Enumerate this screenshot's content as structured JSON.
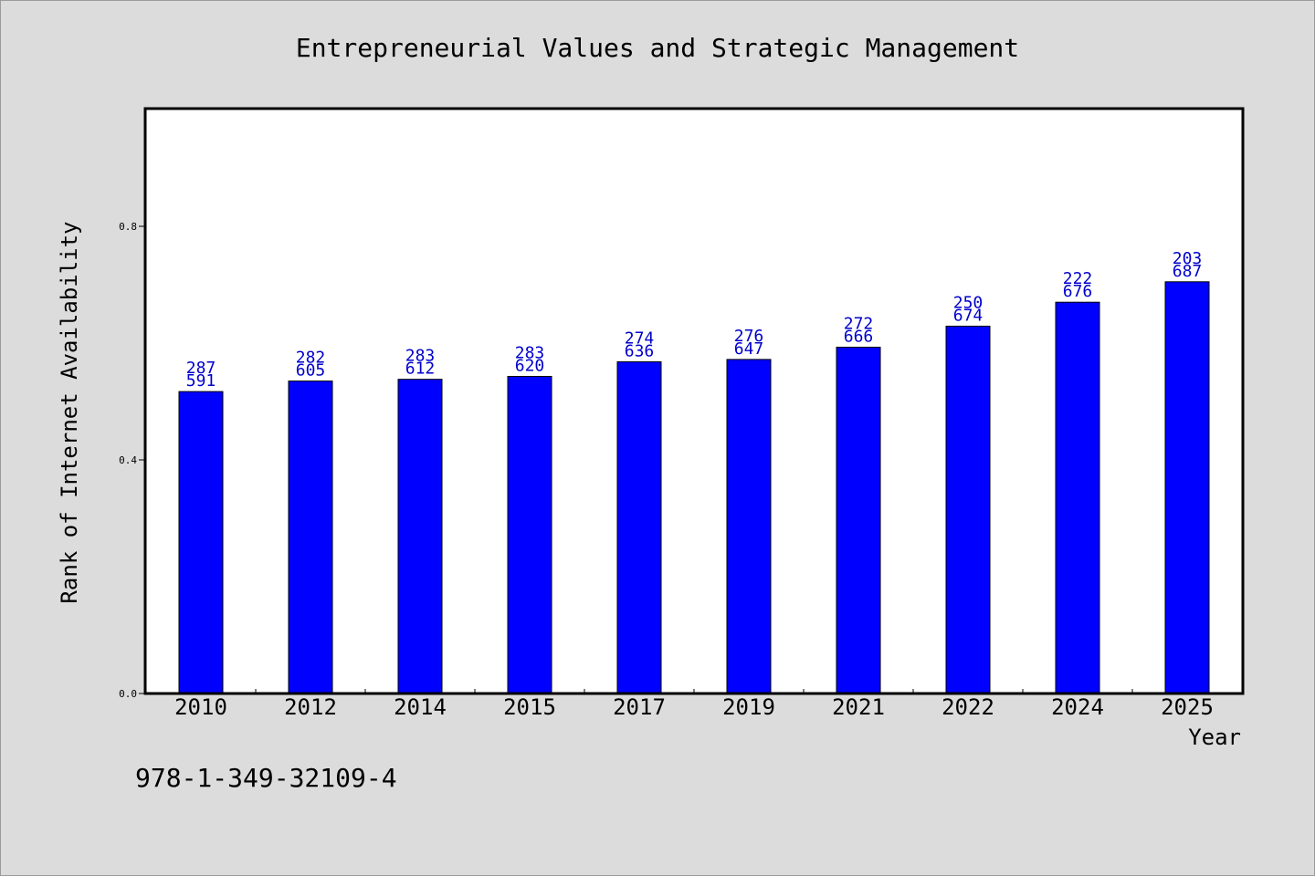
{
  "chart_data": {
    "type": "bar",
    "title": "Entrepreneurial Values and Strategic Management",
    "xlabel": "Year",
    "ylabel": "Rank of Internet Availability",
    "categories": [
      "2010",
      "2012",
      "2014",
      "2015",
      "2017",
      "2019",
      "2021",
      "2022",
      "2024",
      "2025"
    ],
    "values": [
      0.517,
      0.535,
      0.538,
      0.543,
      0.568,
      0.572,
      0.593,
      0.629,
      0.67,
      0.705
    ],
    "labels_top": [
      "287",
      "282",
      "283",
      "283",
      "274",
      "276",
      "272",
      "250",
      "222",
      "203"
    ],
    "labels_bottom": [
      "591",
      "605",
      "612",
      "620",
      "636",
      "647",
      "666",
      "674",
      "676",
      "687"
    ],
    "yticks": [
      "0.0",
      "0.4",
      "0.8"
    ],
    "ytick_values": [
      0.0,
      0.4,
      0.8
    ],
    "ylim": [
      0,
      1.0
    ],
    "grid": false,
    "legend": "none",
    "bar_color": "#0000ff",
    "label_color": "#0000cc"
  },
  "footnote": "978-1-349-32109-4"
}
